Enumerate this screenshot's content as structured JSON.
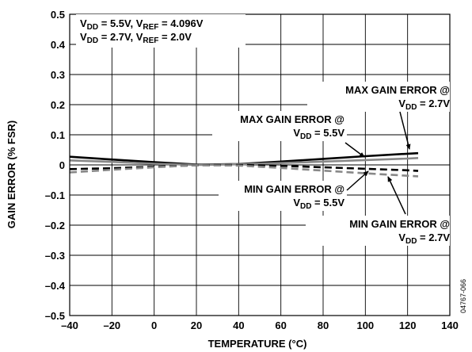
{
  "chart_data": {
    "type": "line",
    "xlabel": "TEMPERATURE (°C)",
    "ylabel": "GAIN ERROR (% FSR)",
    "xlim": [
      -40,
      140
    ],
    "ylim": [
      -0.5,
      0.5
    ],
    "xticks": [
      -40,
      -20,
      0,
      20,
      40,
      60,
      80,
      100,
      120,
      140
    ],
    "yticks": [
      0.5,
      0.4,
      0.3,
      0.2,
      0.1,
      0,
      -0.1,
      -0.2,
      -0.3,
      -0.4,
      -0.5
    ],
    "ytick_labels": [
      "0.5",
      "0.4",
      "0.3",
      "0.2",
      "0.1",
      "0",
      "–0.1",
      "–0.2",
      "–0.3",
      "–0.4",
      "–0.5"
    ],
    "xtick_labels": [
      "–40",
      "–20",
      "0",
      "20",
      "40",
      "60",
      "80",
      "100",
      "120",
      "140"
    ],
    "grid": true,
    "conditions": [
      {
        "base": "V",
        "sub1": "DD",
        "mid": " = 5.5V, V",
        "sub2": "REF",
        "end": " = 4.096V"
      },
      {
        "base": "V",
        "sub1": "DD",
        "mid": " = 2.7V, V",
        "sub2": "REF",
        "end": " = 2.0V"
      }
    ],
    "series": [
      {
        "x": [
          -40,
          -20,
          0,
          20,
          40,
          60,
          80,
          100,
          120,
          125
        ],
        "y": [
          0.027,
          0.018,
          0.009,
          0.001,
          0.003,
          0.011,
          0.02,
          0.029,
          0.037,
          0.039
        ],
        "color": "#000000",
        "dash": "solid"
      },
      {
        "x": [
          -40,
          -20,
          0,
          20,
          40,
          60,
          80,
          100,
          120,
          125
        ],
        "y": [
          0.015,
          0.01,
          0.004,
          0.0,
          0.002,
          0.006,
          0.011,
          0.016,
          0.021,
          0.023
        ],
        "color": "#888888",
        "dash": "solid"
      },
      {
        "x": [
          -40,
          -20,
          0,
          20,
          40,
          60,
          80,
          100,
          120,
          125
        ],
        "y": [
          -0.014,
          -0.011,
          -0.006,
          -0.001,
          0.0,
          -0.003,
          -0.008,
          -0.013,
          -0.018,
          -0.02
        ],
        "color": "#000000",
        "dash": "dash"
      },
      {
        "x": [
          -40,
          -20,
          0,
          20,
          40,
          60,
          80,
          100,
          120,
          125
        ],
        "y": [
          -0.025,
          -0.016,
          -0.008,
          -0.001,
          -0.002,
          -0.01,
          -0.019,
          -0.028,
          -0.036,
          -0.038
        ],
        "color": "#888888",
        "dash": "dash"
      }
    ],
    "annotations": [
      {
        "line1": "MAX GAIN ERROR @",
        "base": "V",
        "sub": "DD",
        "end": " = 2.7V"
      },
      {
        "line1": "MAX GAIN ERROR @",
        "base": "V",
        "sub": "DD",
        "end": " = 5.5V"
      },
      {
        "line1": "MIN GAIN ERROR @",
        "base": "V",
        "sub": "DD",
        "end": " = 5.5V"
      },
      {
        "line1": "MIN GAIN ERROR @",
        "base": "V",
        "sub": "DD",
        "end": " = 2.7V"
      }
    ],
    "figure_code": "04767-066"
  }
}
